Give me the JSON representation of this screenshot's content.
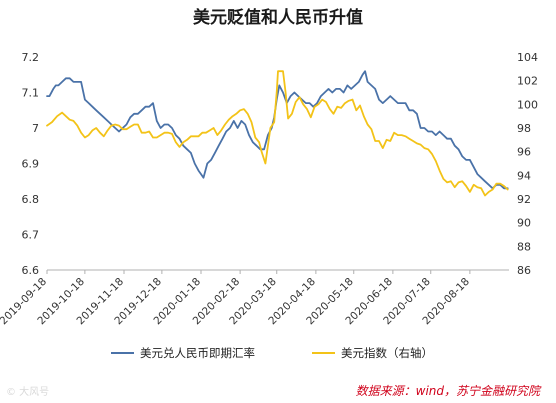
{
  "chart_data": {
    "type": "line",
    "title": "美元贬值和人民币升值",
    "x_ticks": [
      "2019-09-18",
      "2019-10-18",
      "2019-11-18",
      "2019-12-18",
      "2020-01-18",
      "2020-02-18",
      "2020-03-18",
      "2020-04-18",
      "2020-05-18",
      "2020-06-18",
      "2020-07-18",
      "2020-08-18"
    ],
    "x_range": [
      "2019-09-18",
      "2020-09-18"
    ],
    "y_left": {
      "ticks": [
        "6.6",
        "6.7",
        "6.8",
        "6.9",
        "7",
        "7.1",
        "7.2"
      ],
      "min": 6.6,
      "max": 7.2
    },
    "y_right": {
      "ticks": [
        "86",
        "88",
        "90",
        "92",
        "94",
        "96",
        "98",
        "100",
        "102",
        "104"
      ],
      "min": 86,
      "max": 104
    },
    "grid": false,
    "legend_position": "bottom",
    "series": [
      {
        "name": "美元兑人民币即期汇率",
        "axis": "left",
        "color": "#4a72a8",
        "points": [
          [
            "2019-09-18",
            7.09
          ],
          [
            "2019-09-20",
            7.09
          ],
          [
            "2019-09-23",
            7.11
          ],
          [
            "2019-09-25",
            7.12
          ],
          [
            "2019-09-27",
            7.12
          ],
          [
            "2019-09-30",
            7.13
          ],
          [
            "2019-10-03",
            7.14
          ],
          [
            "2019-10-06",
            7.14
          ],
          [
            "2019-10-09",
            7.13
          ],
          [
            "2019-10-12",
            7.13
          ],
          [
            "2019-10-15",
            7.13
          ],
          [
            "2019-10-18",
            7.08
          ],
          [
            "2019-10-21",
            7.07
          ],
          [
            "2019-10-24",
            7.06
          ],
          [
            "2019-10-27",
            7.05
          ],
          [
            "2019-10-30",
            7.04
          ],
          [
            "2019-11-02",
            7.03
          ],
          [
            "2019-11-05",
            7.02
          ],
          [
            "2019-11-08",
            7.01
          ],
          [
            "2019-11-11",
            7.0
          ],
          [
            "2019-11-14",
            6.99
          ],
          [
            "2019-11-17",
            7.0
          ],
          [
            "2019-11-20",
            7.01
          ],
          [
            "2019-11-23",
            7.03
          ],
          [
            "2019-11-26",
            7.04
          ],
          [
            "2019-11-29",
            7.04
          ],
          [
            "2019-12-02",
            7.05
          ],
          [
            "2019-12-05",
            7.06
          ],
          [
            "2019-12-08",
            7.06
          ],
          [
            "2019-12-11",
            7.07
          ],
          [
            "2019-12-14",
            7.02
          ],
          [
            "2019-12-17",
            7.0
          ],
          [
            "2019-12-20",
            7.01
          ],
          [
            "2019-12-23",
            7.01
          ],
          [
            "2019-12-26",
            7.0
          ],
          [
            "2019-12-29",
            6.98
          ],
          [
            "2020-01-01",
            6.97
          ],
          [
            "2020-01-04",
            6.95
          ],
          [
            "2020-01-07",
            6.94
          ],
          [
            "2020-01-10",
            6.93
          ],
          [
            "2020-01-13",
            6.9
          ],
          [
            "2020-01-16",
            6.88
          ],
          [
            "2020-01-18",
            6.87
          ],
          [
            "2020-01-20",
            6.86
          ],
          [
            "2020-01-23",
            6.9
          ],
          [
            "2020-01-26",
            6.91
          ],
          [
            "2020-01-29",
            6.93
          ],
          [
            "2020-02-01",
            6.95
          ],
          [
            "2020-02-04",
            6.97
          ],
          [
            "2020-02-07",
            6.99
          ],
          [
            "2020-02-10",
            7.0
          ],
          [
            "2020-02-13",
            7.02
          ],
          [
            "2020-02-16",
            7.0
          ],
          [
            "2020-02-19",
            7.02
          ],
          [
            "2020-02-22",
            7.01
          ],
          [
            "2020-02-25",
            6.98
          ],
          [
            "2020-02-28",
            6.96
          ],
          [
            "2020-03-02",
            6.95
          ],
          [
            "2020-03-05",
            6.94
          ],
          [
            "2020-03-08",
            6.94
          ],
          [
            "2020-03-11",
            6.98
          ],
          [
            "2020-03-14",
            7.0
          ],
          [
            "2020-03-16",
            7.03
          ],
          [
            "2020-03-18",
            7.08
          ],
          [
            "2020-03-20",
            7.12
          ],
          [
            "2020-03-23",
            7.1
          ],
          [
            "2020-03-26",
            7.07
          ],
          [
            "2020-03-29",
            7.09
          ],
          [
            "2020-04-01",
            7.1
          ],
          [
            "2020-04-04",
            7.09
          ],
          [
            "2020-04-07",
            7.08
          ],
          [
            "2020-04-10",
            7.07
          ],
          [
            "2020-04-13",
            7.07
          ],
          [
            "2020-04-16",
            7.06
          ],
          [
            "2020-04-19",
            7.07
          ],
          [
            "2020-04-22",
            7.09
          ],
          [
            "2020-04-25",
            7.1
          ],
          [
            "2020-04-28",
            7.11
          ],
          [
            "2020-05-01",
            7.1
          ],
          [
            "2020-05-04",
            7.11
          ],
          [
            "2020-05-07",
            7.11
          ],
          [
            "2020-05-10",
            7.1
          ],
          [
            "2020-05-13",
            7.12
          ],
          [
            "2020-05-16",
            7.11
          ],
          [
            "2020-05-19",
            7.12
          ],
          [
            "2020-05-22",
            7.13
          ],
          [
            "2020-05-25",
            7.15
          ],
          [
            "2020-05-27",
            7.16
          ],
          [
            "2020-05-29",
            7.13
          ],
          [
            "2020-06-01",
            7.12
          ],
          [
            "2020-06-04",
            7.11
          ],
          [
            "2020-06-07",
            7.08
          ],
          [
            "2020-06-10",
            7.07
          ],
          [
            "2020-06-13",
            7.08
          ],
          [
            "2020-06-16",
            7.09
          ],
          [
            "2020-06-19",
            7.08
          ],
          [
            "2020-06-22",
            7.07
          ],
          [
            "2020-06-25",
            7.07
          ],
          [
            "2020-06-28",
            7.07
          ],
          [
            "2020-07-01",
            7.05
          ],
          [
            "2020-07-04",
            7.05
          ],
          [
            "2020-07-07",
            7.04
          ],
          [
            "2020-07-10",
            7.0
          ],
          [
            "2020-07-13",
            7.0
          ],
          [
            "2020-07-16",
            6.99
          ],
          [
            "2020-07-19",
            6.99
          ],
          [
            "2020-07-22",
            6.98
          ],
          [
            "2020-07-25",
            6.99
          ],
          [
            "2020-07-28",
            6.98
          ],
          [
            "2020-07-31",
            6.97
          ],
          [
            "2020-08-03",
            6.97
          ],
          [
            "2020-08-06",
            6.95
          ],
          [
            "2020-08-09",
            6.94
          ],
          [
            "2020-08-12",
            6.92
          ],
          [
            "2020-08-15",
            6.91
          ],
          [
            "2020-08-18",
            6.91
          ],
          [
            "2020-08-21",
            6.89
          ],
          [
            "2020-08-24",
            6.87
          ],
          [
            "2020-08-27",
            6.86
          ],
          [
            "2020-08-30",
            6.85
          ],
          [
            "2020-09-02",
            6.84
          ],
          [
            "2020-09-05",
            6.83
          ],
          [
            "2020-09-08",
            6.84
          ],
          [
            "2020-09-11",
            6.84
          ],
          [
            "2020-09-14",
            6.83
          ],
          [
            "2020-09-17",
            6.83
          ]
        ]
      },
      {
        "name": "美元指数（右轴）",
        "axis": "right",
        "color": "#f3c318",
        "points": [
          [
            "2019-09-18",
            98.2
          ],
          [
            "2019-09-22",
            98.5
          ],
          [
            "2019-09-26",
            99.0
          ],
          [
            "2019-09-30",
            99.3
          ],
          [
            "2019-10-03",
            99.0
          ],
          [
            "2019-10-06",
            98.7
          ],
          [
            "2019-10-09",
            98.6
          ],
          [
            "2019-10-12",
            98.2
          ],
          [
            "2019-10-15",
            97.6
          ],
          [
            "2019-10-18",
            97.2
          ],
          [
            "2019-10-21",
            97.4
          ],
          [
            "2019-10-24",
            97.8
          ],
          [
            "2019-10-27",
            98.0
          ],
          [
            "2019-10-30",
            97.6
          ],
          [
            "2019-11-02",
            97.3
          ],
          [
            "2019-11-05",
            97.8
          ],
          [
            "2019-11-08",
            98.2
          ],
          [
            "2019-11-11",
            98.3
          ],
          [
            "2019-11-14",
            98.2
          ],
          [
            "2019-11-17",
            97.9
          ],
          [
            "2019-11-20",
            97.9
          ],
          [
            "2019-11-23",
            98.1
          ],
          [
            "2019-11-26",
            98.3
          ],
          [
            "2019-11-29",
            98.3
          ],
          [
            "2019-12-02",
            97.6
          ],
          [
            "2019-12-05",
            97.6
          ],
          [
            "2019-12-08",
            97.7
          ],
          [
            "2019-12-11",
            97.2
          ],
          [
            "2019-12-14",
            97.2
          ],
          [
            "2019-12-17",
            97.4
          ],
          [
            "2019-12-20",
            97.6
          ],
          [
            "2019-12-23",
            97.6
          ],
          [
            "2019-12-26",
            97.5
          ],
          [
            "2019-12-29",
            96.8
          ],
          [
            "2020-01-01",
            96.4
          ],
          [
            "2020-01-04",
            96.8
          ],
          [
            "2020-01-07",
            97.0
          ],
          [
            "2020-01-10",
            97.3
          ],
          [
            "2020-01-13",
            97.3
          ],
          [
            "2020-01-16",
            97.3
          ],
          [
            "2020-01-19",
            97.6
          ],
          [
            "2020-01-22",
            97.6
          ],
          [
            "2020-01-25",
            97.8
          ],
          [
            "2020-01-28",
            98.0
          ],
          [
            "2020-01-31",
            97.4
          ],
          [
            "2020-02-03",
            97.8
          ],
          [
            "2020-02-06",
            98.3
          ],
          [
            "2020-02-09",
            98.7
          ],
          [
            "2020-02-12",
            99.0
          ],
          [
            "2020-02-15",
            99.2
          ],
          [
            "2020-02-18",
            99.5
          ],
          [
            "2020-02-21",
            99.6
          ],
          [
            "2020-02-24",
            99.2
          ],
          [
            "2020-02-27",
            98.5
          ],
          [
            "2020-03-01",
            97.2
          ],
          [
            "2020-03-04",
            96.8
          ],
          [
            "2020-03-06",
            96.0
          ],
          [
            "2020-03-09",
            95.0
          ],
          [
            "2020-03-11",
            96.5
          ],
          [
            "2020-03-13",
            98.0
          ],
          [
            "2020-03-16",
            98.5
          ],
          [
            "2020-03-18",
            101.0
          ],
          [
            "2020-03-19",
            102.8
          ],
          [
            "2020-03-23",
            102.8
          ],
          [
            "2020-03-25",
            101.0
          ],
          [
            "2020-03-27",
            98.8
          ],
          [
            "2020-03-30",
            99.2
          ],
          [
            "2020-04-02",
            100.2
          ],
          [
            "2020-04-05",
            100.6
          ],
          [
            "2020-04-08",
            100.0
          ],
          [
            "2020-04-11",
            99.6
          ],
          [
            "2020-04-14",
            98.9
          ],
          [
            "2020-04-17",
            99.8
          ],
          [
            "2020-04-20",
            100.0
          ],
          [
            "2020-04-23",
            100.4
          ],
          [
            "2020-04-26",
            100.2
          ],
          [
            "2020-04-29",
            99.6
          ],
          [
            "2020-05-02",
            99.2
          ],
          [
            "2020-05-05",
            99.8
          ],
          [
            "2020-05-08",
            99.7
          ],
          [
            "2020-05-11",
            100.1
          ],
          [
            "2020-05-14",
            100.3
          ],
          [
            "2020-05-17",
            100.4
          ],
          [
            "2020-05-20",
            99.5
          ],
          [
            "2020-05-23",
            99.9
          ],
          [
            "2020-05-26",
            99.0
          ],
          [
            "2020-05-29",
            98.3
          ],
          [
            "2020-06-01",
            97.9
          ],
          [
            "2020-06-04",
            96.9
          ],
          [
            "2020-06-07",
            96.9
          ],
          [
            "2020-06-10",
            96.3
          ],
          [
            "2020-06-13",
            97.0
          ],
          [
            "2020-06-16",
            96.9
          ],
          [
            "2020-06-19",
            97.6
          ],
          [
            "2020-06-22",
            97.4
          ],
          [
            "2020-06-25",
            97.4
          ],
          [
            "2020-06-28",
            97.3
          ],
          [
            "2020-07-01",
            97.1
          ],
          [
            "2020-07-04",
            96.9
          ],
          [
            "2020-07-07",
            96.7
          ],
          [
            "2020-07-10",
            96.6
          ],
          [
            "2020-07-13",
            96.3
          ],
          [
            "2020-07-16",
            96.2
          ],
          [
            "2020-07-19",
            95.8
          ],
          [
            "2020-07-22",
            95.2
          ],
          [
            "2020-07-25",
            94.4
          ],
          [
            "2020-07-28",
            93.7
          ],
          [
            "2020-07-31",
            93.4
          ],
          [
            "2020-08-03",
            93.5
          ],
          [
            "2020-08-06",
            93.0
          ],
          [
            "2020-08-09",
            93.4
          ],
          [
            "2020-08-12",
            93.5
          ],
          [
            "2020-08-15",
            93.1
          ],
          [
            "2020-08-18",
            92.6
          ],
          [
            "2020-08-21",
            93.2
          ],
          [
            "2020-08-24",
            93.0
          ],
          [
            "2020-08-27",
            92.9
          ],
          [
            "2020-08-30",
            92.3
          ],
          [
            "2020-09-02",
            92.6
          ],
          [
            "2020-09-05",
            92.8
          ],
          [
            "2020-09-08",
            93.3
          ],
          [
            "2020-09-11",
            93.3
          ],
          [
            "2020-09-14",
            93.1
          ],
          [
            "2020-09-17",
            92.8
          ]
        ]
      }
    ]
  },
  "source_note": "数据来源：wind，苏宁金融研究院",
  "watermark": "© 大风号"
}
